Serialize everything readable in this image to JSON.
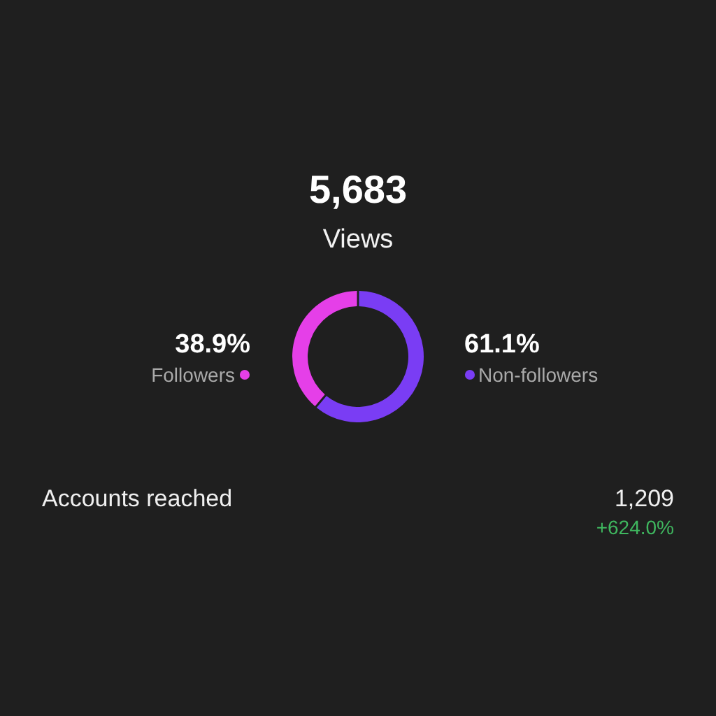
{
  "chart_data": {
    "type": "donut",
    "title": "5,683",
    "subtitle": "Views",
    "categories": [
      "Followers",
      "Non-followers"
    ],
    "values": [
      38.9,
      61.1
    ],
    "colors": [
      "#e53fe8",
      "#7a3df4"
    ],
    "value_labels": [
      "38.9%",
      "61.1%"
    ],
    "annotations": [
      "Accounts reached",
      "1,209",
      "+624.0%"
    ]
  }
}
